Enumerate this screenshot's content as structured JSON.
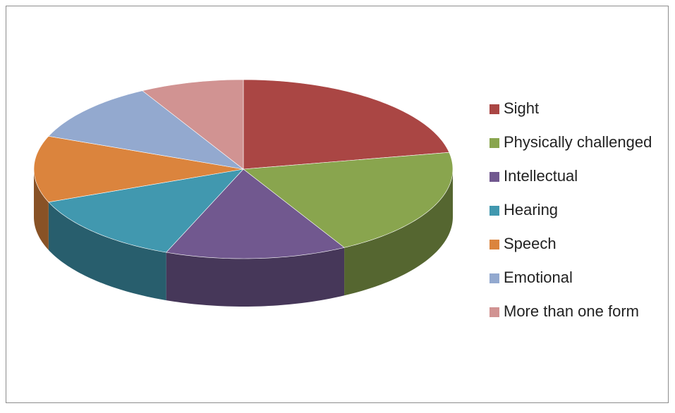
{
  "chart_data": {
    "type": "pie3d",
    "categories": [
      "Sight",
      "Physically challenged",
      "Intellectual",
      "Hearing",
      "Speech",
      "Emotional",
      "More than one form"
    ],
    "values": [
      22,
      20,
      14,
      13,
      12,
      11,
      8
    ],
    "colors": [
      "#aa4644",
      "#89a54e",
      "#71588f",
      "#4198af",
      "#db843d",
      "#93a9cf",
      "#d19392"
    ],
    "legend": "right"
  }
}
